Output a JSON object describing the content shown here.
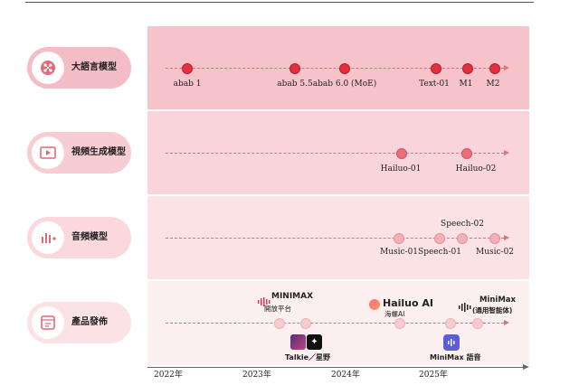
{
  "rows": [
    {
      "label": "大語言模型",
      "icon": "brain-chip-icon",
      "milestones": [
        {
          "label": "abab 1"
        },
        {
          "label": "abab 5.5"
        },
        {
          "label": "abab 6.0 (MoE)"
        },
        {
          "label": "Text-01"
        },
        {
          "label": "M1"
        },
        {
          "label": "M2"
        }
      ]
    },
    {
      "label": "視頻生成模型",
      "icon": "video-play-icon",
      "milestones": [
        {
          "label": "Hailuo-01"
        },
        {
          "label": "Hailuo-02"
        }
      ]
    },
    {
      "label": "音頻模型",
      "icon": "audio-bars-icon",
      "milestones": [
        {
          "label": "Music-01"
        },
        {
          "label": "Speech-01"
        },
        {
          "label": "Speech-02"
        },
        {
          "label": "Music-02"
        }
      ]
    },
    {
      "label": "產品發佈",
      "icon": "product-window-icon",
      "products": [
        {
          "name": "MINIMAX",
          "sub": "開放平台"
        },
        {
          "name": "Talkie／星野"
        },
        {
          "name": "Hailuo AI",
          "sub": "海螺AI"
        },
        {
          "name": "MiniMax 語音"
        },
        {
          "name": "MiniMax",
          "sub": "(通用智能体)"
        }
      ]
    }
  ],
  "axis": {
    "ticks": [
      "2022年",
      "2023年",
      "2024年",
      "2025年"
    ]
  },
  "colors": {
    "band1": "#f6c3cb",
    "band2": "#f9d4da",
    "band3": "#fbe3e5",
    "band4": "#fcefef",
    "accent": "#e3303f"
  }
}
